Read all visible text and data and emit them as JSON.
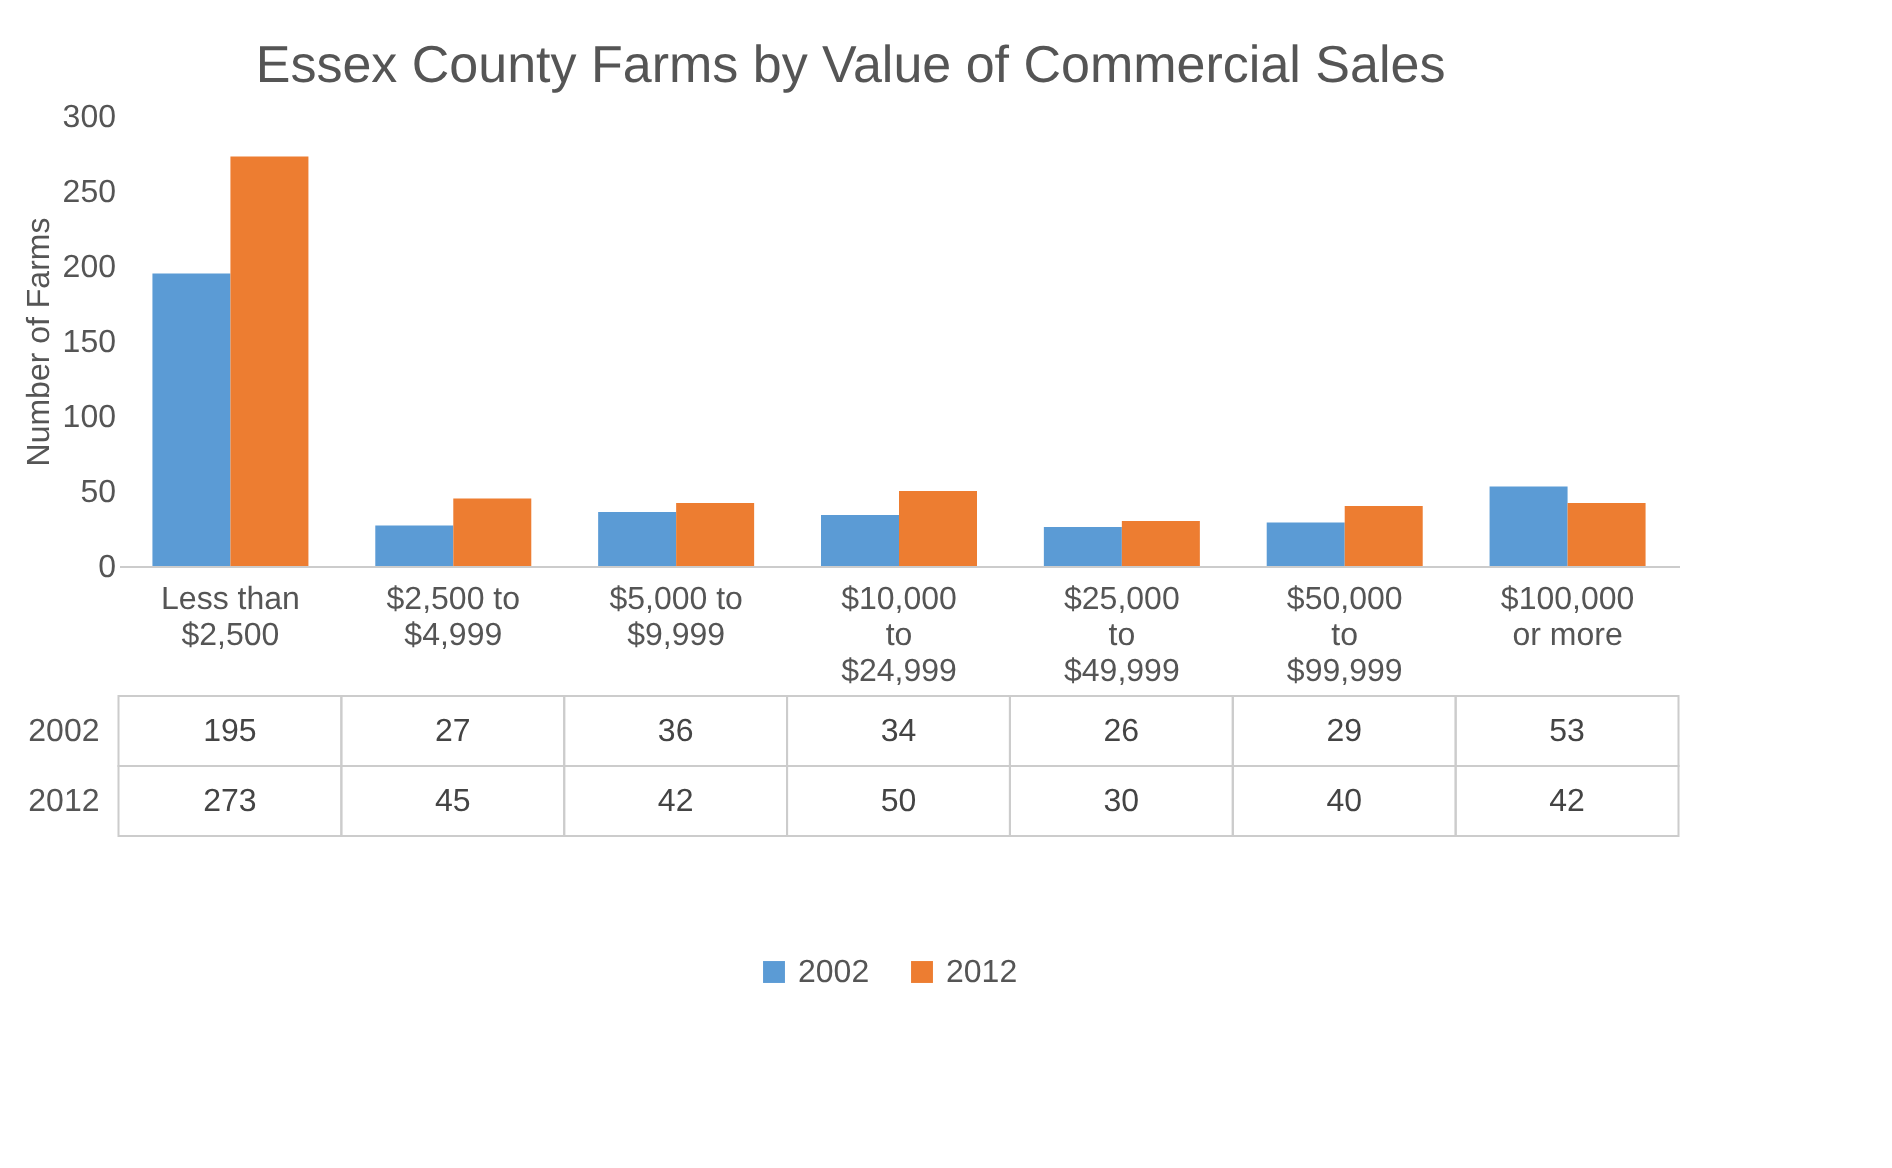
{
  "chart_data": {
    "type": "bar",
    "title": "Essex County Farms by Value of Commercial Sales",
    "ylabel": "Number of Farms",
    "categories": [
      "Less than $2,500",
      "$2,500 to $4,999",
      "$5,000 to $9,999",
      "$10,000 to $24,999",
      "$25,000 to $49,999",
      "$50,000 to $99,999",
      "$100,000 or more"
    ],
    "series": [
      {
        "name": "2002",
        "color": "#5b9bd5",
        "values": [
          195,
          27,
          36,
          34,
          26,
          29,
          53
        ]
      },
      {
        "name": "2012",
        "color": "#ed7d31",
        "values": [
          273,
          45,
          42,
          50,
          30,
          40,
          42
        ]
      }
    ],
    "ylim": [
      0,
      300
    ],
    "yticks": [
      0,
      50,
      100,
      150,
      200,
      250,
      300
    ],
    "grid": false,
    "legend": "bottom",
    "data_labels": true
  }
}
